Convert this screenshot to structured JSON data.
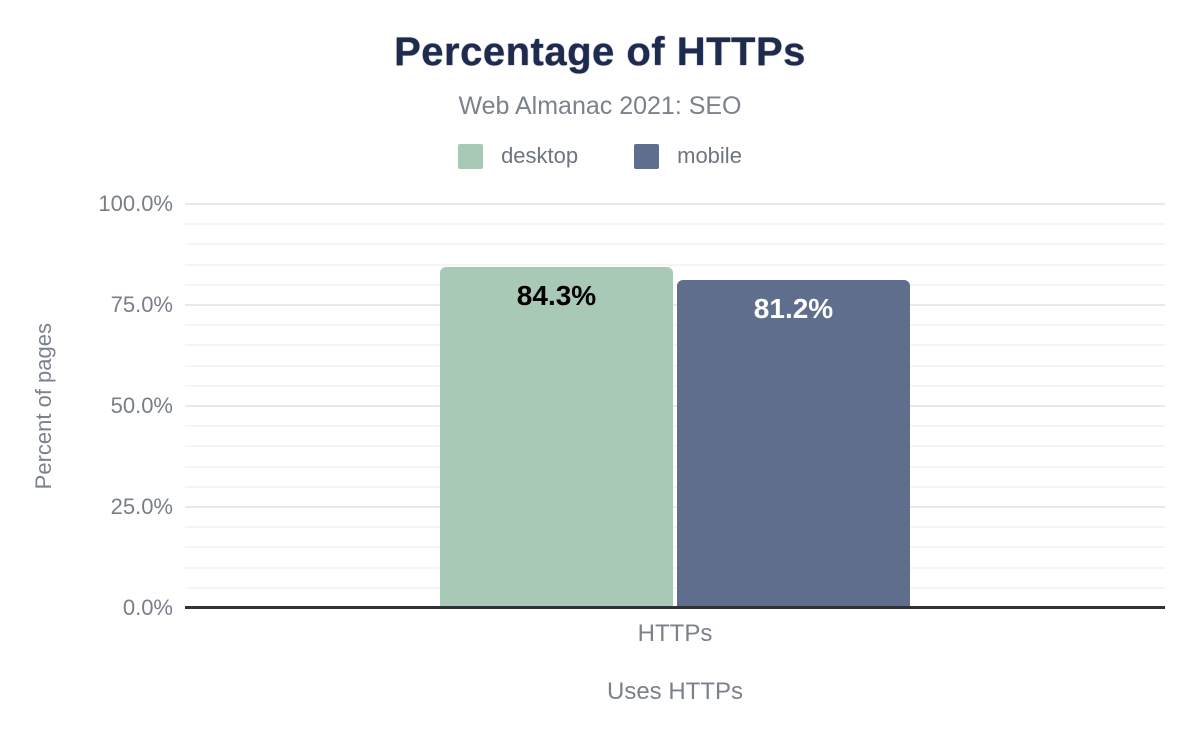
{
  "chart_data": {
    "type": "bar",
    "title": "Percentage of HTTPs",
    "subtitle": "Web Almanac 2021: SEO",
    "categories": [
      "HTTPs"
    ],
    "series": [
      {
        "name": "desktop",
        "values": [
          84.3
        ],
        "data_label": "84.3%",
        "color": "#a8c9b6",
        "label_color": "#000000"
      },
      {
        "name": "mobile",
        "values": [
          81.2
        ],
        "data_label": "81.2%",
        "color": "#5f6e8c",
        "label_color": "#ffffff"
      }
    ],
    "xlabel": "Uses HTTPs",
    "ylabel": "Percent of pages",
    "ylim": [
      0,
      100
    ],
    "y_major_step": 25,
    "y_minor_step": 5,
    "y_tick_labels": [
      "0.0%",
      "25.0%",
      "50.0%",
      "75.0%",
      "100.0%"
    ],
    "grid": true,
    "legend_position": "top",
    "colors": {
      "title": "#1e2b4e",
      "muted_text": "#7b828c",
      "grid_minor": "#f5f5f6",
      "grid_major": "#e9e9ec",
      "axis_line": "#2e333a",
      "background": "#ffffff"
    }
  }
}
